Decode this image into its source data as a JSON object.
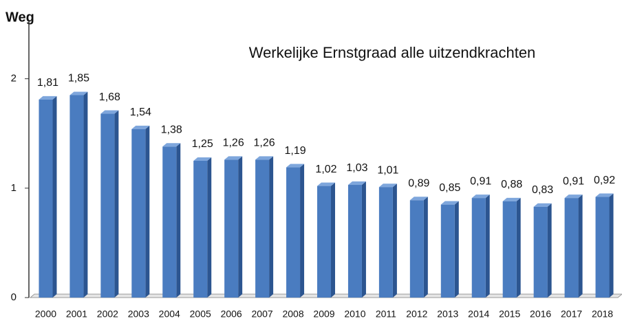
{
  "chart_data": {
    "type": "bar",
    "title": "Werkelijke  Ernstgraad alle uitzendkrachten",
    "y_label": "Weg",
    "categories": [
      "2000",
      "2001",
      "2002",
      "2003",
      "2004",
      "2005",
      "2006",
      "2007",
      "2008",
      "2009",
      "2010",
      "2011",
      "2012",
      "2013",
      "2014",
      "2015",
      "2016",
      "2017",
      "2018"
    ],
    "values": [
      1.81,
      1.85,
      1.68,
      1.54,
      1.38,
      1.25,
      1.26,
      1.26,
      1.19,
      1.02,
      1.03,
      1.01,
      0.89,
      0.85,
      0.91,
      0.88,
      0.83,
      0.91,
      0.92
    ],
    "value_labels": [
      "1,81",
      "1,85",
      "1,68",
      "1,54",
      "1,38",
      "1,25",
      "1,26",
      "1,26",
      "1,19",
      "1,02",
      "1,03",
      "1,01",
      "0,89",
      "0,85",
      "0,91",
      "0,88",
      "0,83",
      "0,91",
      "0,92"
    ],
    "color": "#4a7cc0",
    "ylim": [
      0,
      2.5
    ],
    "yticks": [
      0,
      1,
      2
    ],
    "grid": false
  }
}
